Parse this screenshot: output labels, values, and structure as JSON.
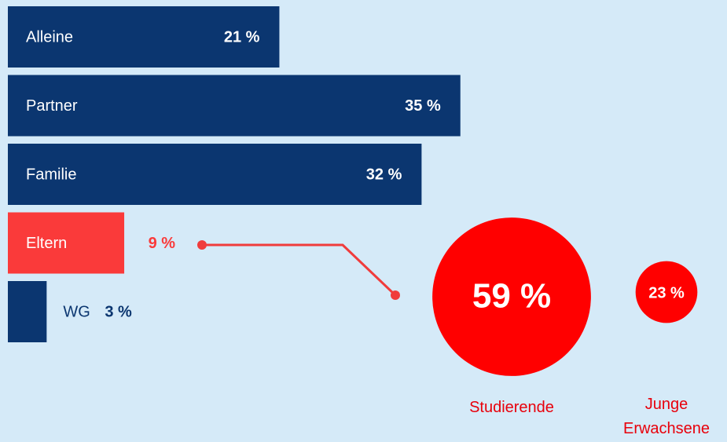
{
  "chart_data": [
    {
      "type": "hbar",
      "categories": [
        "Alleine",
        "Partner",
        "Familie",
        "Eltern",
        "WG"
      ],
      "values": [
        21,
        35,
        32,
        9,
        3
      ],
      "value_labels": [
        "21 %",
        "35 %",
        "32 %",
        "9 %",
        "3 %"
      ],
      "colors": [
        "#0b3670",
        "#0b3670",
        "#0b3670",
        "#fa3a3a",
        "#0b3670"
      ]
    },
    {
      "type": "bubble",
      "categories": [
        "Studierende",
        "Junge Erwachsene"
      ],
      "values": [
        59,
        23
      ],
      "value_labels": [
        "59 %",
        "23 %"
      ],
      "color": "#ff0000"
    }
  ]
}
